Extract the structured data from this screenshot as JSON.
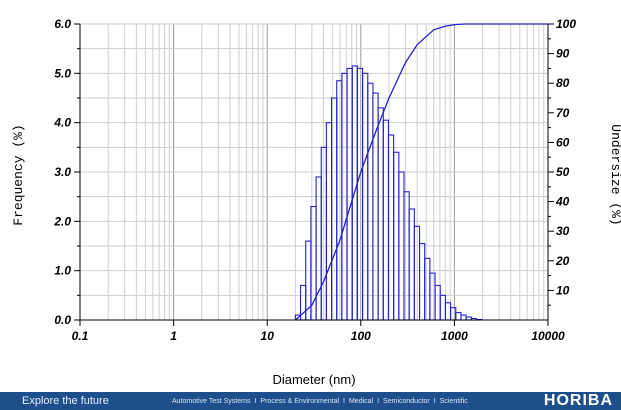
{
  "chart_data": {
    "type": "bar",
    "title": "",
    "xlabel": "Diameter (nm)",
    "ylabel_left": "Frequency (%)",
    "ylabel_right": "Undersize (%)",
    "x_scale": "log",
    "xlim": [
      0.1,
      10000
    ],
    "ylim_left": [
      0,
      6.0
    ],
    "ylim_right": [
      0,
      100
    ],
    "x_ticks": [
      "0.1",
      "1",
      "10",
      "100",
      "1000",
      "10000"
    ],
    "y_left_ticks": [
      "0.0",
      "1.0",
      "2.0",
      "3.0",
      "4.0",
      "5.0",
      "6.0"
    ],
    "y_right_ticks": [
      "10",
      "20",
      "30",
      "40",
      "50",
      "60",
      "70",
      "80",
      "90",
      "100"
    ],
    "grid": true,
    "series": [
      {
        "kind": "frequency",
        "color": "#2323c8",
        "x": [
          20,
          22.7,
          25.8,
          29.3,
          33.3,
          37.8,
          42.9,
          48.7,
          55.3,
          62.8,
          71.3,
          81,
          92,
          104.5,
          118.7,
          134.8,
          153.1,
          173.9,
          197.5,
          224.3,
          254.8,
          289.4,
          328.7,
          373.4,
          424.1,
          481.7,
          547.1,
          621.4,
          705.8,
          801.7,
          910.6,
          1034.3,
          1174.8,
          1334.4,
          1515.6,
          1721.5
        ],
        "values": [
          0.1,
          0.7,
          1.6,
          2.3,
          2.9,
          3.5,
          4.0,
          4.5,
          4.85,
          5.0,
          5.1,
          5.15,
          5.1,
          5.0,
          4.8,
          4.6,
          4.3,
          4.05,
          3.75,
          3.4,
          3.0,
          2.6,
          2.25,
          1.9,
          1.55,
          1.25,
          0.95,
          0.7,
          0.5,
          0.35,
          0.25,
          0.15,
          0.1,
          0.06,
          0.03,
          0.01
        ]
      },
      {
        "kind": "undersize",
        "color": "#2323c8",
        "x": [
          20,
          30,
          40,
          60,
          80,
          100,
          150,
          200,
          300,
          400,
          600,
          800,
          1000,
          1300,
          1600,
          10000
        ],
        "values": [
          0,
          5,
          13,
          27,
          40,
          50,
          65,
          75,
          87,
          93,
          98,
          99.3,
          99.8,
          100,
          100,
          100
        ]
      }
    ]
  },
  "footer": {
    "tagline": "Explore the future",
    "links": [
      "Automotive Test Systems",
      "Process & Environmental",
      "Medical",
      "Semiconductor",
      "Scientific"
    ],
    "separator": "I",
    "brand": "HORIBA"
  }
}
